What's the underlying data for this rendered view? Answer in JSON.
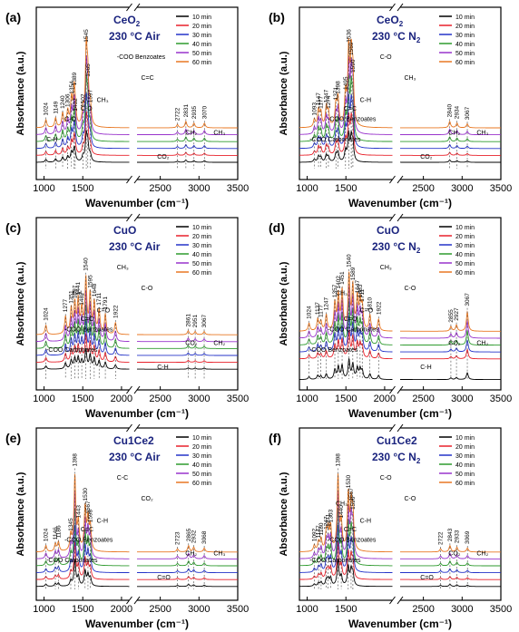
{
  "figure": {
    "y_axis_label": "Absorbance (a.u.)",
    "x_axis_label": "Wavenumber (cm⁻¹)",
    "legend_labels": [
      "10 min",
      "20 min",
      "30 min",
      "40 min",
      "50 min",
      "60 min"
    ],
    "series_colors": [
      "#000000",
      "#e8202a",
      "#2433c8",
      "#2e9a2e",
      "#9933cc",
      "#e87722"
    ],
    "axis_break": [
      2100,
      2200
    ],
    "legend_position": "top-right"
  },
  "chart_data": [
    {
      "type": "line",
      "panel_label": "(a)",
      "title_material": "CeO",
      "title_subscript": "2",
      "title_condition": "230 °C Air",
      "xlim": [
        900,
        3500
      ],
      "x_ticks": [
        1000,
        1500,
        2500,
        3000,
        3500
      ],
      "baselines": [
        0.1,
        0.14,
        0.18,
        0.22,
        0.26,
        0.3
      ],
      "bands": [
        {
          "x": 1024,
          "h": 0.1,
          "label": "1024"
        },
        {
          "x": 1149,
          "h": 0.12,
          "label": "1149"
        },
        {
          "x": 1240,
          "h": 0.18,
          "label": "1240"
        },
        {
          "x": 1306,
          "h": 0.2,
          "label": "1306"
        },
        {
          "x": 1354,
          "h": 0.35,
          "label": "1354"
        },
        {
          "x": 1389,
          "h": 0.45,
          "label": "1389"
        },
        {
          "x": 1402,
          "h": 0.15,
          "label": "1402"
        },
        {
          "x": 1502,
          "h": 0.2,
          "label": "1502"
        },
        {
          "x": 1545,
          "h": 0.95,
          "label": "1545"
        },
        {
          "x": 1565,
          "h": 0.55,
          "label": "1565"
        },
        {
          "x": 1597,
          "h": 0.25,
          "label": "1597"
        },
        {
          "x": 2722,
          "h": 0.04,
          "label": "2722"
        },
        {
          "x": 2831,
          "h": 0.08,
          "label": "2831"
        },
        {
          "x": 2935,
          "h": 0.06,
          "label": "2935"
        },
        {
          "x": 3070,
          "h": 0.06,
          "label": "3070"
        }
      ],
      "annotations": [
        "C-H",
        "C-O",
        "C-O",
        "CH₃",
        "-COO Benzoates",
        "C=C",
        "CO₂",
        "CH₂",
        "CH₃"
      ]
    },
    {
      "type": "line",
      "panel_label": "(b)",
      "title_material": "CeO",
      "title_subscript": "2",
      "title_condition": "230 °C N",
      "title_condition_subscript": "2",
      "xlim": [
        900,
        3500
      ],
      "x_ticks": [
        1000,
        1500,
        2500,
        3000,
        3500
      ],
      "baselines": [
        0.1,
        0.14,
        0.18,
        0.22,
        0.26,
        0.3
      ],
      "bands": [
        {
          "x": 1093,
          "h": 0.1,
          "label": "1093"
        },
        {
          "x": 1147,
          "h": 0.22,
          "label": "1147"
        },
        {
          "x": 1177,
          "h": 0.18,
          "label": "1177"
        },
        {
          "x": 1247,
          "h": 0.25,
          "label": "1247"
        },
        {
          "x": 1274,
          "h": 0.18,
          "label": "1274"
        },
        {
          "x": 1371,
          "h": 0.28,
          "label": "1371"
        },
        {
          "x": 1398,
          "h": 0.35,
          "label": "1398"
        },
        {
          "x": 1495,
          "h": 0.4,
          "label": "1495"
        },
        {
          "x": 1536,
          "h": 0.95,
          "label": "1536"
        },
        {
          "x": 1569,
          "h": 0.8,
          "label": "1569"
        },
        {
          "x": 1590,
          "h": 0.6,
          "label": "1590"
        },
        {
          "x": 2840,
          "h": 0.08,
          "label": "2840"
        },
        {
          "x": 2934,
          "h": 0.06,
          "label": "2934"
        },
        {
          "x": 3067,
          "h": 0.05,
          "label": "3067"
        }
      ],
      "annotations": [
        "-COO Carbonates",
        "-COO Benzoates",
        "C=C",
        "C-H",
        "C-O",
        "CH₃",
        "CO₂",
        "CH₂",
        "CH₃"
      ]
    },
    {
      "type": "line",
      "panel_label": "(c)",
      "title_material": "CuO",
      "title_condition": "230 °C Air",
      "xlim": [
        900,
        3500
      ],
      "x_ticks": [
        1000,
        1500,
        2000,
        2500,
        3000,
        3500
      ],
      "baselines": [
        0.12,
        0.16,
        0.2,
        0.24,
        0.28,
        0.32
      ],
      "bands": [
        {
          "x": 1024,
          "h": 0.12,
          "label": "1024"
        },
        {
          "x": 1277,
          "h": 0.22,
          "label": "1277"
        },
        {
          "x": 1351,
          "h": 0.32,
          "label": "1351"
        },
        {
          "x": 1397,
          "h": 0.38,
          "label": "1397"
        },
        {
          "x": 1441,
          "h": 0.42,
          "label": "1441"
        },
        {
          "x": 1487,
          "h": 0.3,
          "label": "1487"
        },
        {
          "x": 1540,
          "h": 0.7,
          "label": "1540"
        },
        {
          "x": 1595,
          "h": 0.5,
          "label": "1595"
        },
        {
          "x": 1648,
          "h": 0.4,
          "label": "1648"
        },
        {
          "x": 1711,
          "h": 0.3,
          "label": "1711"
        },
        {
          "x": 1791,
          "h": 0.25,
          "label": "1791"
        },
        {
          "x": 1922,
          "h": 0.15,
          "label": "1922"
        },
        {
          "x": 2861,
          "h": 0.05,
          "label": "2861"
        },
        {
          "x": 2951,
          "h": 0.04,
          "label": "2951"
        },
        {
          "x": 3067,
          "h": 0.04,
          "label": "3067"
        }
      ],
      "annotations": [
        "-COO Carbonates",
        "-COO Benzoates",
        "C=O",
        "C=O",
        "CH₃",
        "C-O",
        "C-H",
        "CO₂",
        "CH₂",
        "CH₃"
      ]
    },
    {
      "type": "line",
      "panel_label": "(d)",
      "title_material": "CuO",
      "title_condition": "230 °C N",
      "title_condition_subscript": "2",
      "xlim": [
        900,
        3500
      ],
      "x_ticks": [
        1000,
        1500,
        2000,
        2500,
        3000,
        3500
      ],
      "baselines": [
        0.06,
        0.18,
        0.22,
        0.26,
        0.3,
        0.34
      ],
      "bands": [
        {
          "x": 1024,
          "h": 0.1,
          "label": "1024"
        },
        {
          "x": 1137,
          "h": 0.15,
          "label": "1137"
        },
        {
          "x": 1177,
          "h": 0.12,
          "label": "1177"
        },
        {
          "x": 1247,
          "h": 0.2,
          "label": "1247"
        },
        {
          "x": 1357,
          "h": 0.35,
          "label": "1357"
        },
        {
          "x": 1402,
          "h": 0.45,
          "label": "1402"
        },
        {
          "x": 1451,
          "h": 0.5,
          "label": "1451"
        },
        {
          "x": 1540,
          "h": 0.7,
          "label": "1540"
        },
        {
          "x": 1589,
          "h": 0.55,
          "label": "1589"
        },
        {
          "x": 1647,
          "h": 0.4,
          "label": "1647"
        },
        {
          "x": 1683,
          "h": 0.35,
          "label": "1683"
        },
        {
          "x": 1711,
          "h": 0.3,
          "label": "1711"
        },
        {
          "x": 1810,
          "h": 0.2,
          "label": "1810"
        },
        {
          "x": 1922,
          "h": 0.15,
          "label": "1922"
        },
        {
          "x": 2855,
          "h": 0.06,
          "label": "2855"
        },
        {
          "x": 2927,
          "h": 0.08,
          "label": "2927"
        },
        {
          "x": 3067,
          "h": 0.25,
          "label": "3067"
        }
      ],
      "annotations": [
        "-COO Benzoates",
        "-COO Carbonates",
        "C=O",
        "C=O",
        "CH₃",
        "C-O",
        "C-H",
        "CO₂",
        "CH₂",
        "CH₃"
      ]
    },
    {
      "type": "line",
      "panel_label": "(e)",
      "title_material": "Cu1Ce2",
      "title_condition": "230 °C Air",
      "xlim": [
        900,
        3500
      ],
      "x_ticks": [
        1000,
        1500,
        2000,
        2500,
        3000,
        3500
      ],
      "baselines": [
        0.08,
        0.12,
        0.16,
        0.2,
        0.24,
        0.28
      ],
      "bands": [
        {
          "x": 1024,
          "h": 0.08,
          "label": "1024"
        },
        {
          "x": 1146,
          "h": 0.1,
          "label": "1146"
        },
        {
          "x": 1186,
          "h": 0.12,
          "label": "1186"
        },
        {
          "x": 1345,
          "h": 0.2,
          "label": "1345"
        },
        {
          "x": 1398,
          "h": 0.95,
          "label": "1398"
        },
        {
          "x": 1443,
          "h": 0.35,
          "label": "1443"
        },
        {
          "x": 1530,
          "h": 0.55,
          "label": "1530"
        },
        {
          "x": 1567,
          "h": 0.4,
          "label": "1567"
        },
        {
          "x": 1598,
          "h": 0.3,
          "label": "1598"
        },
        {
          "x": 2723,
          "h": 0.04,
          "label": "2723"
        },
        {
          "x": 2865,
          "h": 0.08,
          "label": "2865"
        },
        {
          "x": 2932,
          "h": 0.06,
          "label": "2932"
        },
        {
          "x": 3068,
          "h": 0.05,
          "label": "3068"
        }
      ],
      "annotations": [
        "-COO Carbonates",
        "-COO Benzoates",
        "C=C",
        "C-H",
        "C-C",
        "CO₂",
        "C=O",
        "CH₂",
        "CH₃"
      ]
    },
    {
      "type": "line",
      "panel_label": "(f)",
      "title_material": "Cu1Ce2",
      "title_condition": "230 °C N",
      "title_condition_subscript": "2",
      "xlim": [
        900,
        3500
      ],
      "x_ticks": [
        1000,
        1500,
        2500,
        3000,
        3500
      ],
      "baselines": [
        0.08,
        0.12,
        0.16,
        0.2,
        0.24,
        0.28
      ],
      "bands": [
        {
          "x": 1092,
          "h": 0.08,
          "label": "1092"
        },
        {
          "x": 1147,
          "h": 0.12,
          "label": "1147"
        },
        {
          "x": 1180,
          "h": 0.15,
          "label": "1180"
        },
        {
          "x": 1247,
          "h": 0.22,
          "label": "1247"
        },
        {
          "x": 1271,
          "h": 0.25,
          "label": "1271"
        },
        {
          "x": 1303,
          "h": 0.3,
          "label": "1303"
        },
        {
          "x": 1398,
          "h": 0.95,
          "label": "1398"
        },
        {
          "x": 1440,
          "h": 0.35,
          "label": "1440"
        },
        {
          "x": 1530,
          "h": 0.7,
          "label": "1530"
        },
        {
          "x": 1567,
          "h": 0.55,
          "label": "1567"
        },
        {
          "x": 1590,
          "h": 0.45,
          "label": "1590"
        },
        {
          "x": 2722,
          "h": 0.04,
          "label": "2722"
        },
        {
          "x": 2843,
          "h": 0.08,
          "label": "2843"
        },
        {
          "x": 2933,
          "h": 0.06,
          "label": "2933"
        },
        {
          "x": 3069,
          "h": 0.05,
          "label": "3069"
        }
      ],
      "annotations": [
        "-COO Carbonates",
        "-COO Benzoates",
        "C=C",
        "C-H",
        "C-O",
        "C-O",
        "C=O",
        "CO₂",
        "CH₂",
        "CH₃"
      ]
    }
  ]
}
